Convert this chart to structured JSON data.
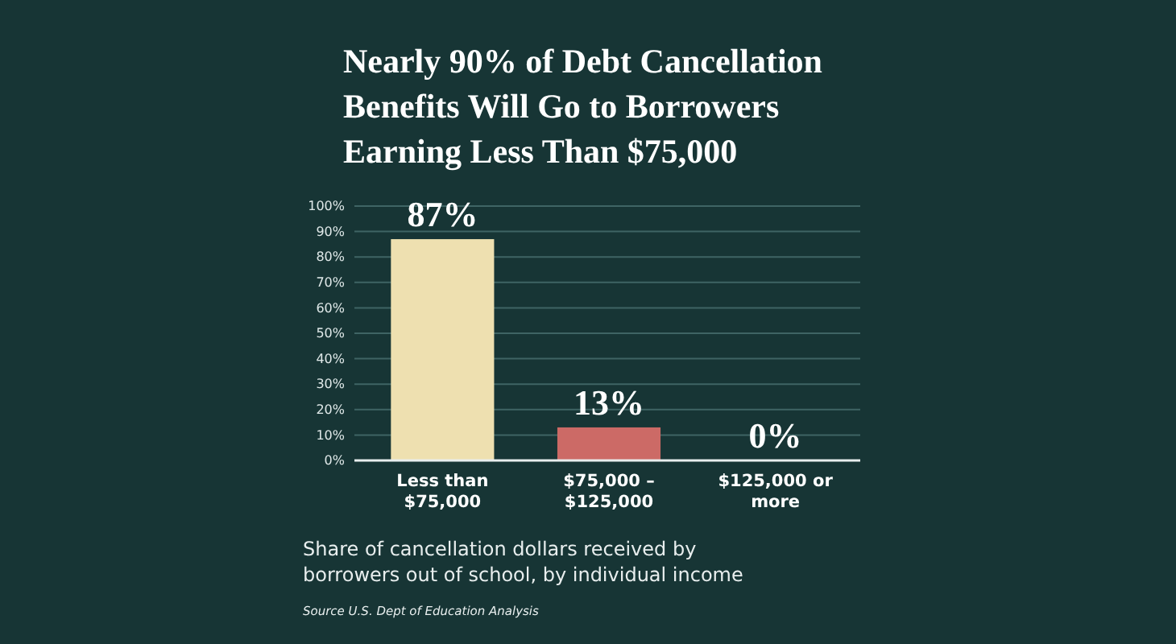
{
  "chart_data": {
    "type": "bar",
    "title": "Nearly 90% of Debt Cancellation Benefits Will Go to Borrowers Earning Less Than $75,000",
    "categories": [
      "Less than $75,000",
      "$75,000 – $125,000",
      "$125,000 or more"
    ],
    "values": [
      87,
      13,
      0
    ],
    "colors": [
      "#eee0b0",
      "#cc6a66",
      "#cc6a66"
    ],
    "value_labels": [
      "87%",
      "13%",
      "0%"
    ],
    "ylim": [
      0,
      100
    ],
    "yticks": [
      {
        "value": 0,
        "label": "0%"
      },
      {
        "value": 10,
        "label": "10%"
      },
      {
        "value": 20,
        "label": "20%"
      },
      {
        "value": 30,
        "label": "30%"
      },
      {
        "value": 40,
        "label": "40%"
      },
      {
        "value": 50,
        "label": "50%"
      },
      {
        "value": 60,
        "label": "60%"
      },
      {
        "value": 70,
        "label": "70%"
      },
      {
        "value": 80,
        "label": "80%"
      },
      {
        "value": 90,
        "label": "90%"
      },
      {
        "value": 100,
        "label": "100%"
      }
    ],
    "grid": "y",
    "annotations": [
      "Share of cancellation dollars received by borrowers out of school, by individual income",
      "Source U.S. Dept of Education Analysis"
    ]
  }
}
